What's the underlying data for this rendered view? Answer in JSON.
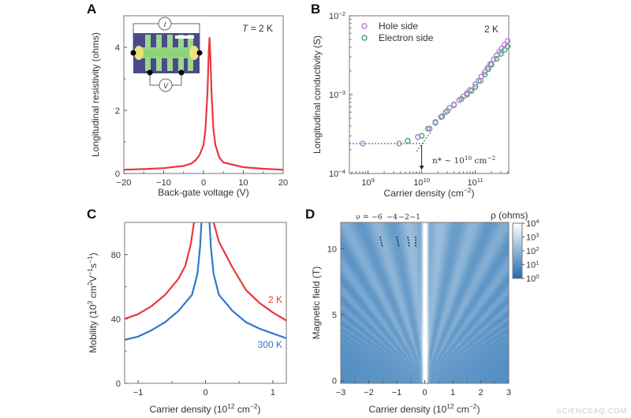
{
  "watermark": "SCIENCEAQ.COM",
  "chart_data": [
    {
      "panel": "A",
      "type": "line",
      "xlabel": "Back-gate voltage (V)",
      "ylabel": "Longitudinal resistivity (ohms)",
      "annotation": "T = 2 K",
      "xlim": [
        -20,
        20
      ],
      "ylim": [
        0,
        5
      ],
      "xticks": [
        "-20",
        "-10",
        "0",
        "10",
        "20"
      ],
      "xtick_values": [
        -20,
        -10,
        0,
        10,
        20
      ],
      "yticks": [
        "0",
        "2",
        "4"
      ],
      "ytick_values": [
        0,
        2,
        4
      ],
      "color": "#e8383d",
      "x": [
        -20,
        -15,
        -10,
        -5,
        -3,
        -2,
        -1,
        0,
        0.5,
        1,
        1.3,
        1.5,
        1.7,
        2,
        2.5,
        3,
        4,
        5,
        10,
        15,
        20
      ],
      "y": [
        0.12,
        0.14,
        0.17,
        0.24,
        0.32,
        0.42,
        0.58,
        0.9,
        1.4,
        2.6,
        3.8,
        4.3,
        3.8,
        2.6,
        1.4,
        0.9,
        0.5,
        0.35,
        0.2,
        0.15,
        0.12
      ],
      "inset": {
        "current_label": "I",
        "voltage_label": "V"
      }
    },
    {
      "panel": "B",
      "type": "scatter",
      "xlabel": "Carrier density (cm^-2)",
      "ylabel": "Longitudinal conductivity (S)",
      "xscale": "log",
      "yscale": "log",
      "xlim": [
        450000000.0,
        420000000000.0
      ],
      "ylim": [
        0.0001,
        0.01
      ],
      "xticks": [
        "10^9",
        "10^10",
        "10^11"
      ],
      "xtick_values": [
        1000000000.0,
        10000000000.0,
        100000000000.0
      ],
      "yticks": [
        "10^-4",
        "10^-3",
        "10^-2"
      ],
      "ytick_values": [
        0.0001,
        0.001,
        0.01
      ],
      "annotation": "2 K",
      "threshold_label": "n* ~ 10^10 cm^-2",
      "legend": "top-left",
      "series": [
        {
          "name": "Hole side",
          "color": "#b27fd8",
          "x": [
            800000000.0,
            3800000000.0,
            8500000000.0,
            13000000000.0,
            18000000000.0,
            23000000000.0,
            28000000000.0,
            33000000000.0,
            40000000000.0,
            50000000000.0,
            60000000000.0,
            70000000000.0,
            80000000000.0,
            100000000000.0,
            115000000000.0,
            130000000000.0,
            150000000000.0,
            170000000000.0,
            190000000000.0,
            220000000000.0,
            250000000000.0,
            280000000000.0,
            310000000000.0,
            350000000000.0,
            400000000000.0
          ],
          "y": [
            0.00024,
            0.00024,
            0.00029,
            0.00037,
            0.00045,
            0.00052,
            0.0006,
            0.00068,
            0.00075,
            0.00085,
            0.00095,
            0.00105,
            0.00115,
            0.00135,
            0.0015,
            0.0017,
            0.00195,
            0.0022,
            0.00245,
            0.0028,
            0.00315,
            0.0035,
            0.00385,
            0.0043,
            0.0048
          ]
        },
        {
          "name": "Electron side",
          "color": "#3daa6e",
          "x": [
            5500000000.0,
            10000000000.0,
            14000000000.0,
            18000000000.0,
            24000000000.0,
            30000000000.0,
            40000000000.0,
            55000000000.0,
            70000000000.0,
            85000000000.0,
            100000000000.0,
            125000000000.0,
            150000000000.0,
            175000000000.0,
            200000000000.0,
            250000000000.0,
            300000000000.0,
            350000000000.0,
            400000000000.0
          ],
          "y": [
            0.00026,
            0.0003,
            0.00037,
            0.00044,
            0.00053,
            0.00062,
            0.00074,
            0.00088,
            0.001,
            0.00112,
            0.00125,
            0.0015,
            0.0018,
            0.0021,
            0.0024,
            0.00285,
            0.0033,
            0.0037,
            0.0041
          ]
        }
      ]
    },
    {
      "panel": "C",
      "type": "line",
      "xlabel": "Carrier density (10^12 cm^-2)",
      "ylabel": "Mobility (10^3 cm^2V^-1s^-1)",
      "xlim": [
        -1.2,
        1.2
      ],
      "ylim": [
        0,
        100
      ],
      "xticks": [
        "-1",
        "0",
        "1"
      ],
      "xtick_values": [
        -1,
        0,
        1
      ],
      "yticks": [
        "0",
        "40",
        "80"
      ],
      "ytick_values": [
        0,
        40,
        80
      ],
      "series": [
        {
          "name": "2 K",
          "color": "#e8383d",
          "segments": [
            {
              "x": [
                -1.2,
                -1,
                -0.8,
                -0.6,
                -0.4,
                -0.3,
                -0.22,
                -0.17
              ],
              "y": [
                40,
                43,
                48,
                55,
                65,
                73,
                86,
                100
              ]
            },
            {
              "x": [
                0.12,
                0.2,
                0.3,
                0.4,
                0.6,
                0.8,
                1,
                1.2
              ],
              "y": [
                100,
                88,
                80,
                72,
                58,
                50,
                44,
                39
              ]
            }
          ]
        },
        {
          "name": "300 K",
          "color": "#2f78d0",
          "segments": [
            {
              "x": [
                -1.2,
                -1,
                -0.8,
                -0.6,
                -0.4,
                -0.2,
                -0.12,
                -0.08,
                -0.06
              ],
              "y": [
                27,
                29,
                33,
                38,
                45,
                55,
                68,
                85,
                100
              ]
            },
            {
              "x": [
                0.06,
                0.08,
                0.12,
                0.2,
                0.4,
                0.6,
                0.8,
                1,
                1.2
              ],
              "y": [
                100,
                85,
                68,
                55,
                45,
                38,
                34,
                31,
                28
              ]
            }
          ]
        }
      ]
    },
    {
      "panel": "D",
      "type": "heatmap",
      "xlabel": "Carrier density (10^12 cm^-2)",
      "ylabel": "Magnetic field (T)",
      "xlim": [
        -3,
        3
      ],
      "ylim": [
        -0.2,
        12
      ],
      "xticks": [
        "-3",
        "-2",
        "-1",
        "0",
        "1",
        "2",
        "3"
      ],
      "xtick_values": [
        -3,
        -2,
        -1,
        0,
        1,
        2,
        3
      ],
      "yticks": [
        "0",
        "5",
        "10"
      ],
      "ytick_values": [
        0,
        5,
        10
      ],
      "filling_labels": [
        "ν = −6",
        "−4",
        "−2",
        "−1"
      ],
      "filling_values": [
        -6,
        -4,
        -2,
        -1
      ],
      "colorbar": {
        "title": "ρ (ohms)",
        "scale": "log",
        "range": [
          1,
          10000
        ],
        "ticks": [
          "10^4",
          "10^3",
          "10^2",
          "10^1",
          "10^0"
        ],
        "colors": [
          "#ffffff",
          "#1f6cb0"
        ]
      }
    }
  ]
}
